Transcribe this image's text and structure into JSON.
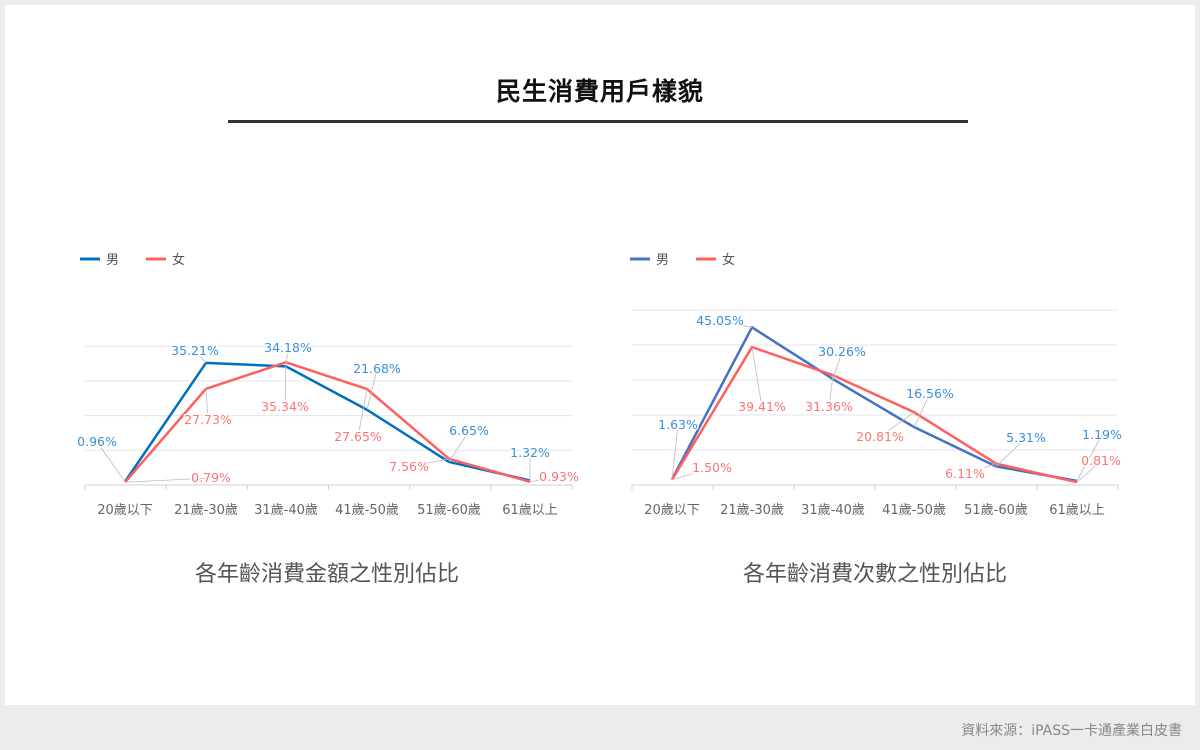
{
  "title": "民生消費用戶樣貌",
  "footer": "資料來源：iPASS一卡通產業白皮書",
  "chart_data": [
    {
      "type": "line",
      "title": "各年齡消費金額之性別佔比",
      "categories": [
        "20歲以下",
        "21歲-30歲",
        "31歲-40歲",
        "41歲-50歲",
        "51歲-60歲",
        "61歲以上"
      ],
      "ylim": [
        0,
        40
      ],
      "grid": true,
      "legend": "top-left",
      "series": [
        {
          "name": "男",
          "color": "#0070c0",
          "label_color": "#3a8fd8",
          "values": [
            0.96,
            35.21,
            34.18,
            21.68,
            6.65,
            1.32
          ],
          "labels": [
            "0.96%",
            "35.21%",
            "34.18%",
            "21.68%",
            "6.65%",
            "1.32%"
          ]
        },
        {
          "name": "女",
          "color": "#ff5f5f",
          "label_color": "#ff7373",
          "values": [
            0.79,
            27.73,
            35.34,
            27.65,
            7.56,
            0.93
          ],
          "labels": [
            "0.79%",
            "27.73%",
            "35.34%",
            "27.65%",
            "7.56%",
            "0.93%"
          ]
        }
      ]
    },
    {
      "type": "line",
      "title": "各年齡消費次數之性別佔比",
      "categories": [
        "20歲以下",
        "21歲-30歲",
        "31歲-40歲",
        "41歲-50歲",
        "51歲-60歲",
        "61歲以上"
      ],
      "ylim": [
        0,
        50
      ],
      "grid": true,
      "legend": "top-left",
      "series": [
        {
          "name": "男",
          "color": "#4472c4",
          "label_color": "#3a8fd8",
          "values": [
            1.63,
            45.05,
            30.26,
            16.56,
            5.31,
            1.19
          ],
          "labels": [
            "1.63%",
            "45.05%",
            "30.26%",
            "16.56%",
            "5.31%",
            "1.19%"
          ]
        },
        {
          "name": "女",
          "color": "#ff5f5f",
          "label_color": "#ff7373",
          "values": [
            1.5,
            39.41,
            31.36,
            20.81,
            6.11,
            0.81
          ],
          "labels": [
            "1.50%",
            "39.41%",
            "31.36%",
            "20.81%",
            "6.11%",
            "0.81%"
          ]
        }
      ]
    }
  ]
}
